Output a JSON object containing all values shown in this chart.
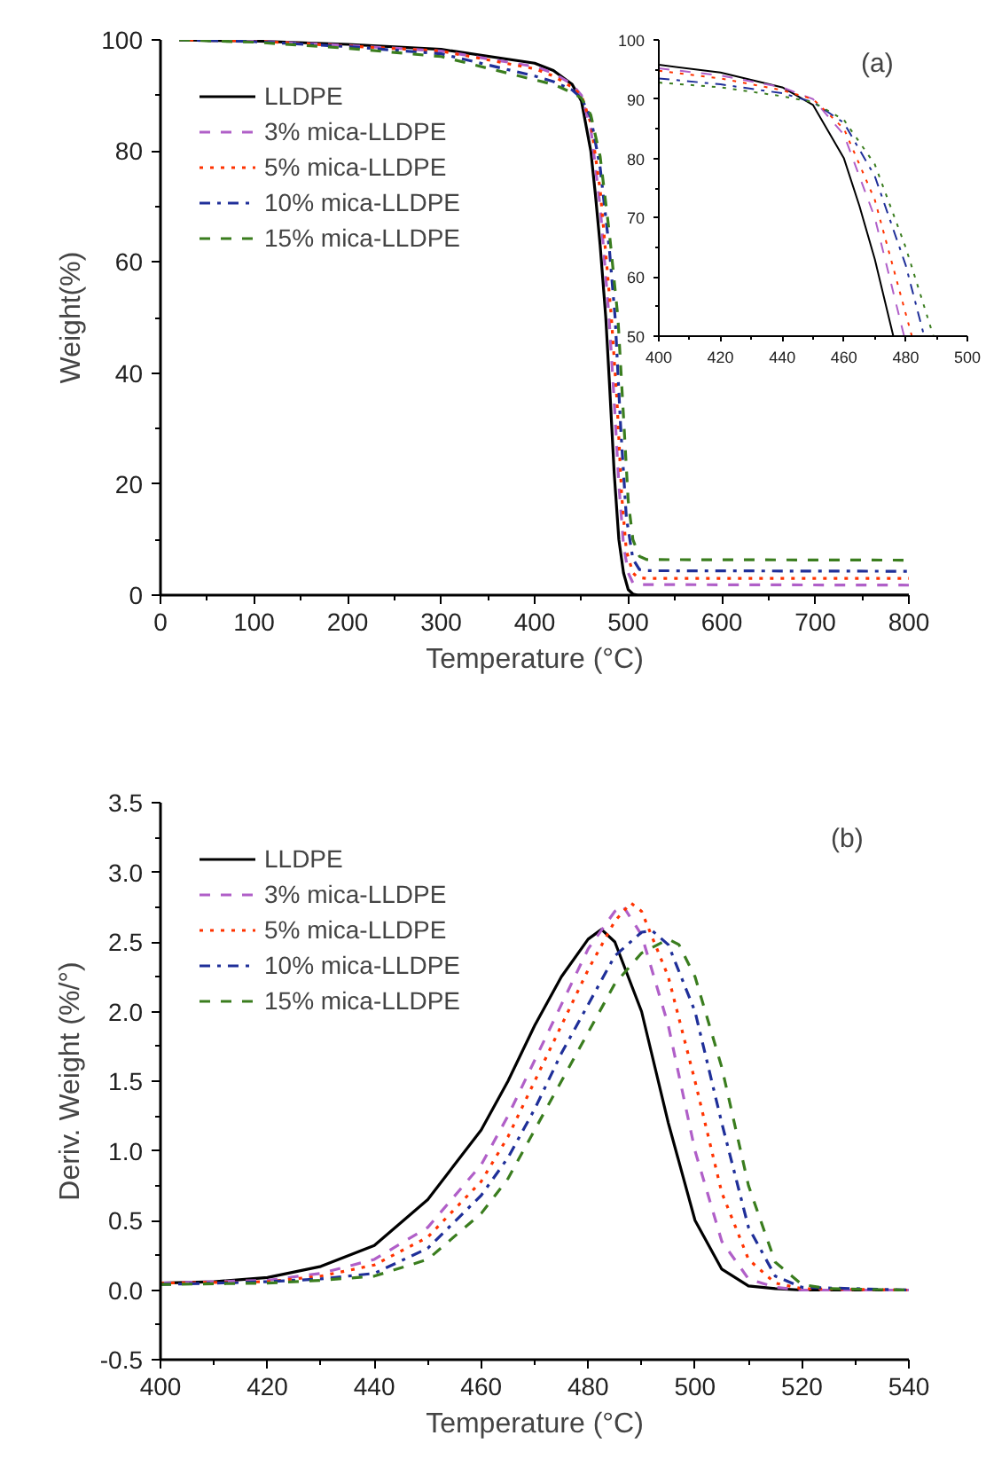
{
  "chart_data": [
    {
      "type": "line",
      "xlabel": "Temperature (°C)",
      "ylabel": "Weight(%)",
      "annotations": [
        "(a)"
      ],
      "xlim": [
        0,
        800
      ],
      "ylim": [
        0,
        100
      ],
      "xticks": [
        0,
        100,
        200,
        300,
        400,
        500,
        600,
        700,
        800
      ],
      "yticks": [
        0,
        20,
        40,
        60,
        80,
        100
      ],
      "grid": false,
      "legend": "top left",
      "series": [
        {
          "name": "LLDPE",
          "color": "#000000",
          "line_style": "solid",
          "x": [
            20,
            100,
            200,
            300,
            400,
            420,
            440,
            450,
            460,
            465,
            470,
            476,
            480,
            485,
            490,
            495,
            500,
            505,
            510,
            800
          ],
          "values": [
            100,
            99.8,
            99.2,
            98.3,
            95.8,
            94.5,
            92,
            89,
            80,
            72,
            63,
            50,
            38,
            22,
            10,
            4,
            1,
            0.2,
            0,
            0
          ]
        },
        {
          "name": "3% mica-LLDPE",
          "color": "#b05fc8",
          "line_style": "dashed",
          "x": [
            20,
            100,
            200,
            300,
            400,
            420,
            440,
            450,
            460,
            470,
            479.5,
            485,
            490,
            495,
            500,
            505,
            510,
            800
          ],
          "values": [
            100,
            99.8,
            99,
            98,
            95.2,
            94,
            92,
            90,
            84,
            70,
            50,
            35,
            20,
            9,
            4,
            2.2,
            1.9,
            1.8
          ]
        },
        {
          "name": "5% mica-LLDPE",
          "color": "#ff3300",
          "line_style": "dotted",
          "x": [
            20,
            100,
            200,
            300,
            400,
            420,
            440,
            450,
            460,
            470,
            482,
            488,
            493,
            498,
            505,
            510,
            520,
            800
          ],
          "values": [
            100,
            99.8,
            98.9,
            98,
            94.8,
            93.5,
            91.5,
            90,
            85,
            73,
            50,
            35,
            18,
            8,
            4,
            3.2,
            3,
            3
          ]
        },
        {
          "name": "10% mica-LLDPE",
          "color": "#1f2f99",
          "line_style": "dashdot",
          "x": [
            20,
            100,
            200,
            300,
            400,
            420,
            440,
            450,
            460,
            470,
            480,
            486,
            492,
            498,
            505,
            512,
            520,
            800
          ],
          "values": [
            100,
            99.7,
            98.8,
            97.5,
            93.5,
            92.5,
            91,
            89.5,
            86,
            77,
            62,
            50,
            30,
            14,
            6.5,
            4.6,
            4.4,
            4.3
          ]
        },
        {
          "name": "15% mica-LLDPE",
          "color": "#3a7d1e",
          "line_style": "dashed",
          "x": [
            20,
            100,
            200,
            300,
            400,
            420,
            440,
            450,
            460,
            470,
            480,
            489,
            495,
            500,
            505,
            512,
            520,
            800
          ],
          "values": [
            100,
            99.6,
            98.5,
            97,
            92.8,
            92,
            90.5,
            89.5,
            86.5,
            79,
            65,
            50,
            32,
            17,
            10,
            7,
            6.4,
            6.3
          ]
        }
      ]
    },
    {
      "type": "line",
      "xlim": [
        400,
        500
      ],
      "ylim": [
        50,
        100
      ],
      "xticks": [
        400,
        420,
        440,
        460,
        480,
        500
      ],
      "yticks": [
        50,
        60,
        70,
        80,
        90,
        100
      ],
      "grid": false,
      "series": [
        {
          "color": "#000000",
          "line_style": "solid",
          "x": [
            400,
            420,
            440,
            450,
            460,
            465,
            470,
            476
          ],
          "values": [
            95.8,
            94.5,
            92,
            89,
            80,
            72,
            63,
            50
          ]
        },
        {
          "color": "#b05fc8",
          "line_style": "dashed",
          "x": [
            400,
            420,
            440,
            450,
            460,
            470,
            479.5
          ],
          "values": [
            95.2,
            94,
            92,
            90,
            84,
            70,
            50
          ]
        },
        {
          "color": "#ff3300",
          "line_style": "dotted",
          "x": [
            400,
            420,
            440,
            450,
            460,
            470,
            482
          ],
          "values": [
            94.8,
            93.5,
            91.5,
            90,
            85,
            73,
            50
          ]
        },
        {
          "color": "#1f2f99",
          "line_style": "dashdot",
          "x": [
            400,
            420,
            440,
            450,
            460,
            470,
            480,
            486
          ],
          "values": [
            93.5,
            92.5,
            91,
            89.5,
            86,
            77,
            62,
            50
          ]
        },
        {
          "color": "#3a7d1e",
          "line_style": "dotted",
          "x": [
            400,
            420,
            440,
            450,
            460,
            470,
            480,
            489
          ],
          "values": [
            92.8,
            92,
            90.5,
            89.5,
            86.5,
            79,
            65,
            50
          ]
        }
      ]
    },
    {
      "type": "line",
      "xlabel": "Temperature (°C)",
      "ylabel": "Deriv. Weight (%/°)",
      "annotations": [
        "(b)"
      ],
      "xlim": [
        400,
        540
      ],
      "ylim": [
        -0.5,
        3.5
      ],
      "xticks": [
        400,
        420,
        440,
        460,
        480,
        500,
        520,
        540
      ],
      "yticks": [
        {
          "value": -0.5,
          "label": "-0.5"
        },
        {
          "value": 0,
          "label": "0.0"
        },
        {
          "value": 0.5,
          "label": "0.5"
        },
        {
          "value": 1,
          "label": "1.0"
        },
        {
          "value": 1.5,
          "label": "1.5"
        },
        {
          "value": 2,
          "label": "2.0"
        },
        {
          "value": 2.5,
          "label": "2.5"
        },
        {
          "value": 3,
          "label": "3.0"
        },
        {
          "value": 3.5,
          "label": "3.5"
        }
      ],
      "grid": false,
      "legend": "top left",
      "series": [
        {
          "name": "LLDPE",
          "color": "#000000",
          "line_style": "solid",
          "x": [
            400,
            410,
            420,
            430,
            440,
            450,
            460,
            465,
            470,
            475,
            480,
            482.5,
            485,
            490,
            495,
            500,
            505,
            510,
            515,
            520,
            540
          ],
          "values": [
            0.05,
            0.06,
            0.09,
            0.17,
            0.32,
            0.65,
            1.15,
            1.5,
            1.9,
            2.25,
            2.52,
            2.59,
            2.5,
            2.0,
            1.2,
            0.5,
            0.15,
            0.03,
            0.01,
            0,
            0
          ]
        },
        {
          "name": "3% mica-LLDPE",
          "color": "#b05fc8",
          "line_style": "dashed",
          "x": [
            400,
            420,
            430,
            440,
            450,
            460,
            465,
            470,
            475,
            480,
            485,
            486.5,
            490,
            495,
            500,
            505,
            510,
            515,
            520,
            540
          ],
          "values": [
            0.05,
            0.07,
            0.12,
            0.22,
            0.45,
            0.9,
            1.25,
            1.65,
            2.05,
            2.45,
            2.72,
            2.76,
            2.55,
            1.9,
            1.0,
            0.35,
            0.08,
            0.02,
            0,
            0
          ]
        },
        {
          "name": "5% mica-LLDPE",
          "color": "#ff3300",
          "line_style": "dotted",
          "x": [
            400,
            420,
            430,
            440,
            450,
            460,
            465,
            470,
            475,
            480,
            485,
            488,
            490,
            495,
            500,
            505,
            510,
            515,
            520,
            540
          ],
          "values": [
            0.05,
            0.06,
            0.1,
            0.18,
            0.38,
            0.78,
            1.1,
            1.5,
            1.9,
            2.3,
            2.65,
            2.78,
            2.72,
            2.25,
            1.5,
            0.7,
            0.22,
            0.05,
            0.01,
            0
          ]
        },
        {
          "name": "10% mica-LLDPE",
          "color": "#1f2f99",
          "line_style": "dashdot",
          "x": [
            400,
            420,
            430,
            440,
            450,
            460,
            465,
            470,
            475,
            480,
            485,
            490,
            492,
            495,
            500,
            505,
            510,
            515,
            520,
            540
          ],
          "values": [
            0.04,
            0.06,
            0.08,
            0.12,
            0.3,
            0.68,
            0.95,
            1.3,
            1.7,
            2.05,
            2.4,
            2.57,
            2.58,
            2.48,
            2.0,
            1.2,
            0.45,
            0.1,
            0.02,
            0
          ]
        },
        {
          "name": "15% mica-LLDPE",
          "color": "#3a7d1e",
          "line_style": "dashed",
          "x": [
            400,
            420,
            430,
            440,
            450,
            460,
            465,
            470,
            475,
            480,
            485,
            490,
            495,
            497,
            500,
            505,
            510,
            515,
            520,
            525,
            540
          ],
          "values": [
            0.04,
            0.05,
            0.07,
            0.1,
            0.22,
            0.55,
            0.8,
            1.15,
            1.5,
            1.85,
            2.2,
            2.42,
            2.52,
            2.48,
            2.25,
            1.6,
            0.75,
            0.2,
            0.04,
            0.01,
            0
          ]
        }
      ]
    }
  ]
}
